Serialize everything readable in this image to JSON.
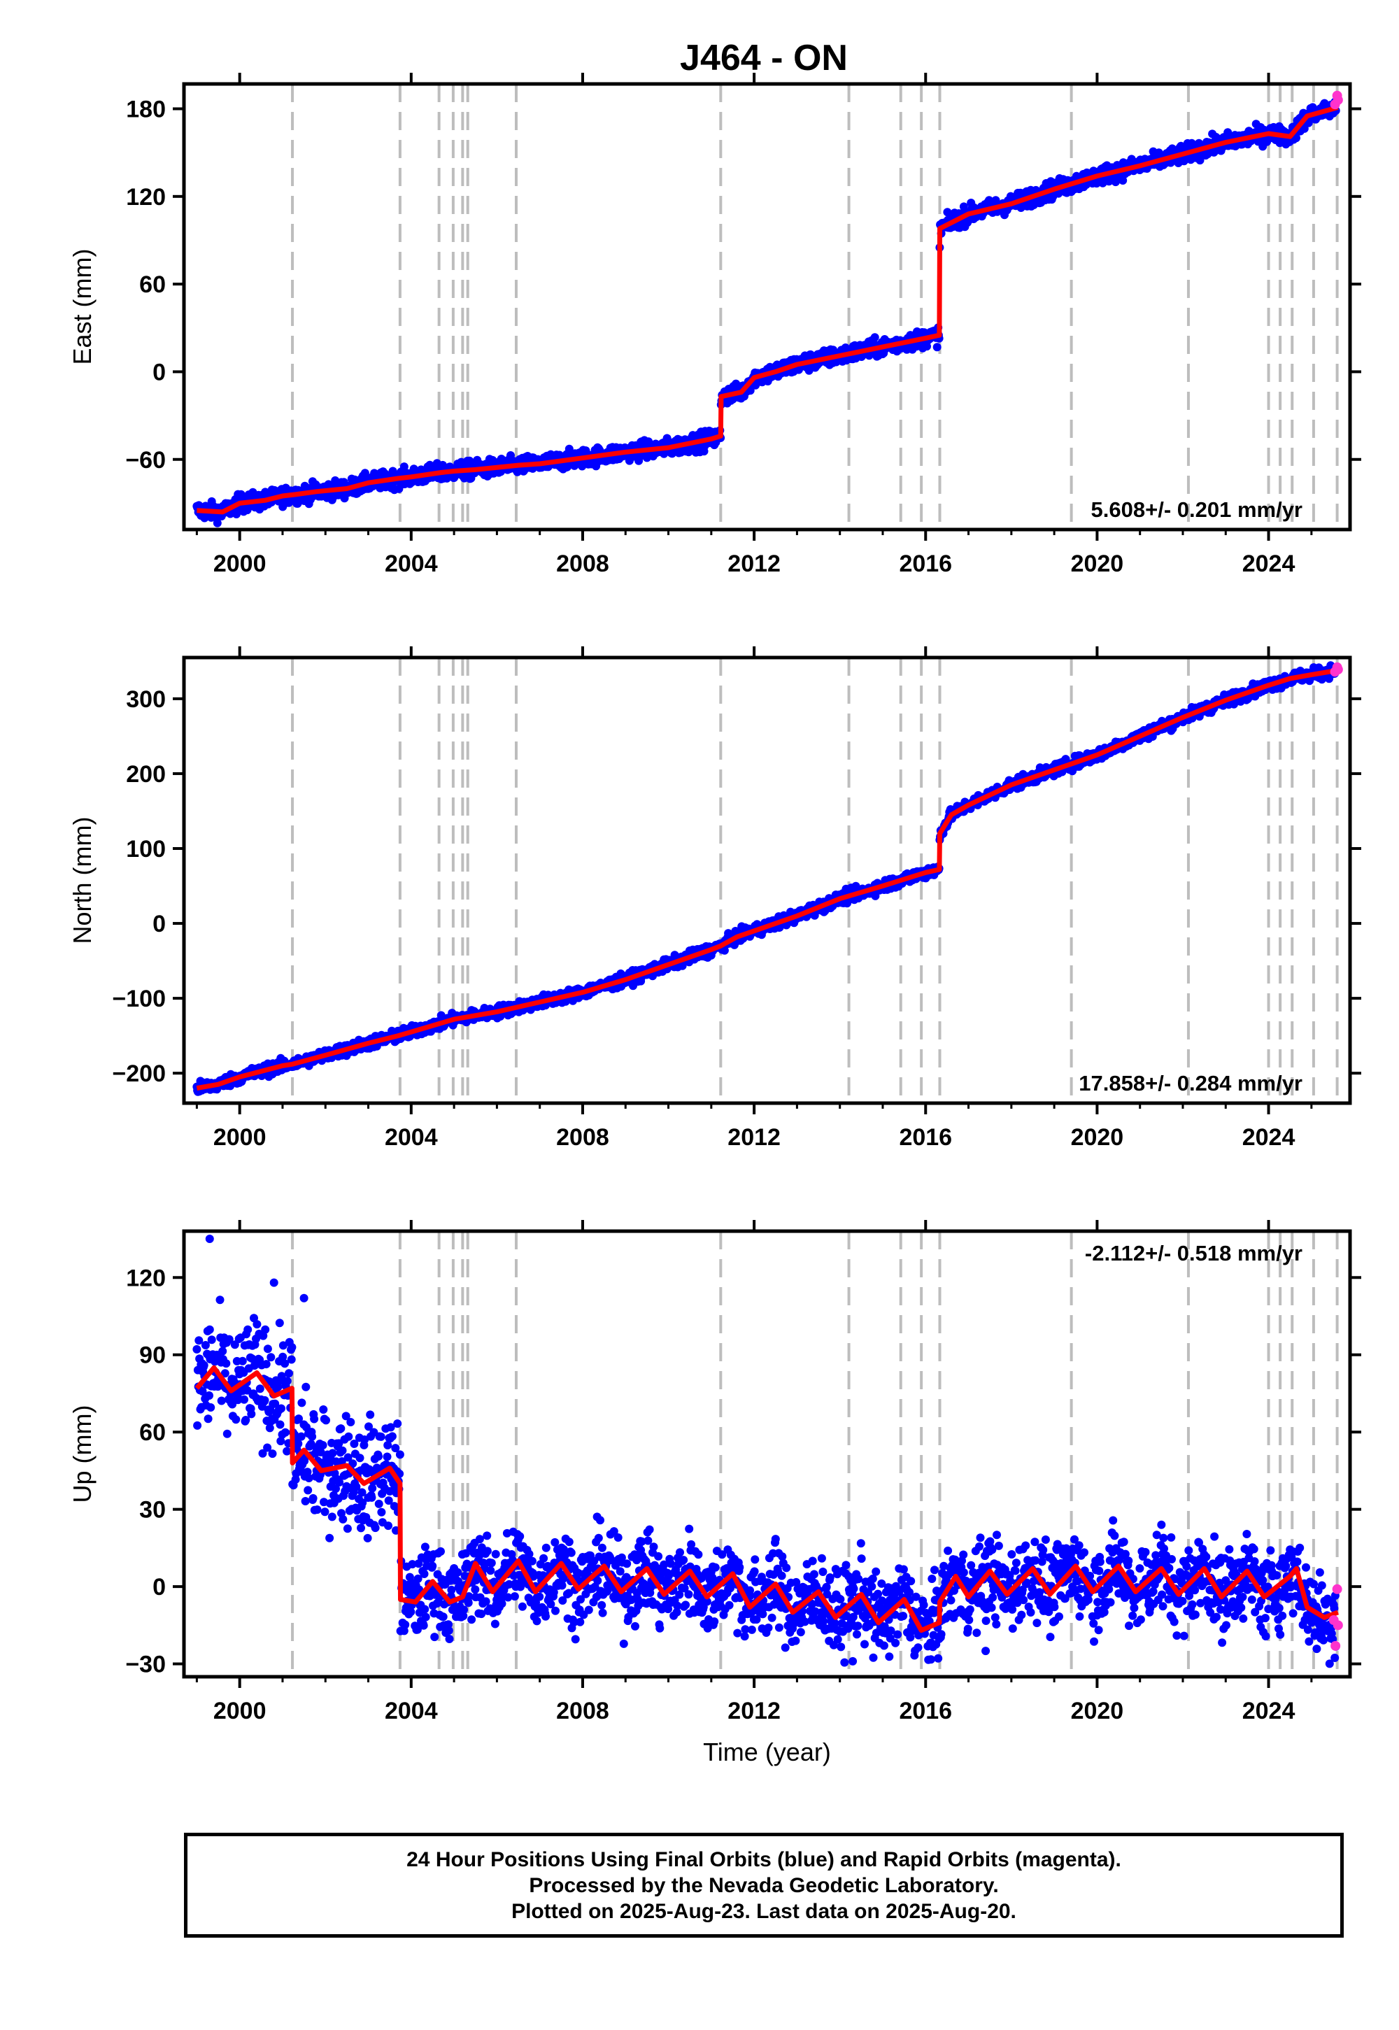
{
  "title": "J464 - ON",
  "colors": {
    "final_orbits": "#0000ff",
    "rapid_orbits": "#ff33cc",
    "model": "#ff0000",
    "steps": "#bdbdbd"
  },
  "chart_data": [
    {
      "type": "scatter",
      "component": "East",
      "ylabel": "East (mm)",
      "xlabel": "",
      "xlim": [
        1998.7,
        2025.9
      ],
      "ylim": [
        -108,
        197
      ],
      "yticks": [
        -60,
        0,
        60,
        120,
        180
      ],
      "xticks": [
        2000,
        2004,
        2008,
        2012,
        2016,
        2020,
        2024
      ],
      "rate_label": "5.608+/- 0.201 mm/yr",
      "rate_position": "bottom-right",
      "model_points": [
        [
          1999.0,
          -95
        ],
        [
          1999.6,
          -96
        ],
        [
          2000.0,
          -90
        ],
        [
          2000.6,
          -88
        ],
        [
          2001.0,
          -85
        ],
        [
          2001.3,
          -84
        ],
        [
          2001.8,
          -82
        ],
        [
          2002.5,
          -80
        ],
        [
          2003.0,
          -76
        ],
        [
          2003.7,
          -73
        ],
        [
          2004.0,
          -72
        ],
        [
          2004.7,
          -69
        ],
        [
          2005.0,
          -68
        ],
        [
          2005.5,
          -67
        ],
        [
          2006.5,
          -64
        ],
        [
          2007.0,
          -63
        ],
        [
          2008.0,
          -59
        ],
        [
          2009.0,
          -55
        ],
        [
          2010.0,
          -52
        ],
        [
          2011.0,
          -46
        ],
        [
          2011.22,
          -44
        ],
        [
          2011.23,
          -17
        ],
        [
          2011.7,
          -14
        ],
        [
          2012.0,
          -4
        ],
        [
          2012.5,
          0
        ],
        [
          2013.0,
          5
        ],
        [
          2014.0,
          11
        ],
        [
          2015.0,
          17
        ],
        [
          2016.0,
          23
        ],
        [
          2016.32,
          25
        ],
        [
          2016.33,
          98
        ],
        [
          2016.8,
          105
        ],
        [
          2017.0,
          108
        ],
        [
          2018.0,
          115
        ],
        [
          2019.0,
          125
        ],
        [
          2020.0,
          134
        ],
        [
          2021.0,
          141
        ],
        [
          2022.0,
          149
        ],
        [
          2023.0,
          157
        ],
        [
          2024.0,
          163
        ],
        [
          2024.5,
          161
        ],
        [
          2024.9,
          175
        ],
        [
          2025.5,
          180
        ],
        [
          2025.62,
          181
        ]
      ],
      "noise": 3,
      "rapid": [
        [
          2025.55,
          183
        ],
        [
          2025.6,
          189
        ],
        [
          2025.62,
          186
        ]
      ]
    },
    {
      "type": "scatter",
      "component": "North",
      "ylabel": "North (mm)",
      "xlabel": "",
      "xlim": [
        1998.7,
        2025.9
      ],
      "ylim": [
        -240,
        355
      ],
      "yticks": [
        -200,
        -100,
        0,
        100,
        200,
        300
      ],
      "xticks": [
        2000,
        2004,
        2008,
        2012,
        2016,
        2020,
        2024
      ],
      "rate_label": "17.858+/- 0.284 mm/yr",
      "rate_position": "bottom-right",
      "model_points": [
        [
          1999.0,
          -220
        ],
        [
          1999.5,
          -215
        ],
        [
          2000.0,
          -205
        ],
        [
          2001.0,
          -190
        ],
        [
          2001.23,
          -188
        ],
        [
          2002.0,
          -176
        ],
        [
          2003.0,
          -160
        ],
        [
          2003.7,
          -150
        ],
        [
          2004.0,
          -145
        ],
        [
          2005.0,
          -128
        ],
        [
          2006.0,
          -118
        ],
        [
          2007.0,
          -105
        ],
        [
          2008.0,
          -92
        ],
        [
          2009.0,
          -75
        ],
        [
          2010.0,
          -55
        ],
        [
          2011.0,
          -35
        ],
        [
          2011.22,
          -30
        ],
        [
          2011.6,
          -18
        ],
        [
          2012.0,
          -10
        ],
        [
          2013.0,
          10
        ],
        [
          2014.0,
          33
        ],
        [
          2015.0,
          50
        ],
        [
          2016.0,
          68
        ],
        [
          2016.32,
          72
        ],
        [
          2016.33,
          120
        ],
        [
          2016.6,
          145
        ],
        [
          2017.0,
          158
        ],
        [
          2018.0,
          185
        ],
        [
          2019.0,
          205
        ],
        [
          2020.0,
          225
        ],
        [
          2021.0,
          250
        ],
        [
          2022.0,
          275
        ],
        [
          2023.0,
          298
        ],
        [
          2024.0,
          318
        ],
        [
          2024.5,
          327
        ],
        [
          2025.0,
          332
        ],
        [
          2025.62,
          338
        ]
      ],
      "noise": 4,
      "rapid": [
        [
          2025.55,
          336
        ],
        [
          2025.6,
          342
        ],
        [
          2025.62,
          339
        ]
      ]
    },
    {
      "type": "scatter",
      "component": "Up",
      "ylabel": "Up (mm)",
      "xlabel": "Time (year)",
      "xlim": [
        1998.7,
        2025.9
      ],
      "ylim": [
        -35,
        138
      ],
      "yticks": [
        -30,
        0,
        30,
        60,
        90,
        120
      ],
      "xticks": [
        2000,
        2004,
        2008,
        2012,
        2016,
        2020,
        2024
      ],
      "rate_label": "-2.112+/- 0.518 mm/yr",
      "rate_position": "top-right",
      "model_points": [
        [
          1999.0,
          77
        ],
        [
          1999.4,
          85
        ],
        [
          1999.8,
          76
        ],
        [
          2000.4,
          83
        ],
        [
          2000.8,
          74
        ],
        [
          2001.22,
          77
        ],
        [
          2001.23,
          48
        ],
        [
          2001.5,
          53
        ],
        [
          2001.9,
          45
        ],
        [
          2002.5,
          47
        ],
        [
          2002.9,
          40
        ],
        [
          2003.5,
          46
        ],
        [
          2003.74,
          40
        ],
        [
          2003.75,
          -5
        ],
        [
          2004.1,
          -6
        ],
        [
          2004.5,
          2
        ],
        [
          2004.9,
          -6
        ],
        [
          2005.2,
          -4
        ],
        [
          2005.5,
          9
        ],
        [
          2005.9,
          -2
        ],
        [
          2006.5,
          10
        ],
        [
          2006.9,
          -2
        ],
        [
          2007.5,
          9
        ],
        [
          2007.9,
          -1
        ],
        [
          2008.5,
          8
        ],
        [
          2008.9,
          -2
        ],
        [
          2009.5,
          7
        ],
        [
          2009.9,
          -3
        ],
        [
          2010.5,
          6
        ],
        [
          2010.9,
          -4
        ],
        [
          2011.5,
          5
        ],
        [
          2011.9,
          -8
        ],
        [
          2012.5,
          1
        ],
        [
          2012.9,
          -10
        ],
        [
          2013.5,
          -2
        ],
        [
          2013.9,
          -12
        ],
        [
          2014.5,
          -3
        ],
        [
          2014.9,
          -14
        ],
        [
          2015.5,
          -5
        ],
        [
          2015.9,
          -17
        ],
        [
          2016.32,
          -14
        ],
        [
          2016.33,
          -6
        ],
        [
          2016.7,
          4
        ],
        [
          2017.0,
          -4
        ],
        [
          2017.5,
          6
        ],
        [
          2017.9,
          -3
        ],
        [
          2018.5,
          7
        ],
        [
          2018.9,
          -3
        ],
        [
          2019.5,
          8
        ],
        [
          2019.9,
          -2
        ],
        [
          2020.5,
          8
        ],
        [
          2020.9,
          -2
        ],
        [
          2021.5,
          7
        ],
        [
          2021.9,
          -3
        ],
        [
          2022.5,
          7
        ],
        [
          2022.9,
          -4
        ],
        [
          2023.5,
          6
        ],
        [
          2023.9,
          -4
        ],
        [
          2024.5,
          4
        ],
        [
          2024.65,
          7
        ],
        [
          2024.9,
          -8
        ],
        [
          2025.3,
          -12
        ],
        [
          2025.62,
          -10
        ]
      ],
      "noise": 8,
      "rapid": [
        [
          2025.52,
          -13
        ],
        [
          2025.56,
          -23
        ],
        [
          2025.6,
          -1
        ],
        [
          2025.62,
          -15
        ]
      ],
      "outliers": [
        [
          1999.3,
          135
        ],
        [
          2000.8,
          118
        ],
        [
          2001.5,
          112
        ],
        [
          2021.5,
          24
        ],
        [
          2014.3,
          -29
        ],
        [
          2017.4,
          -25
        ]
      ]
    }
  ],
  "step_epochs": [
    2001.23,
    2003.74,
    2004.65,
    2004.98,
    2005.2,
    2005.32,
    2006.45,
    2011.22,
    2014.21,
    2015.42,
    2015.9,
    2016.33,
    2019.4,
    2022.13,
    2024.0,
    2024.27,
    2024.55,
    2025.05,
    2025.6
  ],
  "footer": {
    "line1": "24 Hour Positions Using Final Orbits (blue) and Rapid Orbits (magenta).",
    "line2": "Processed by the Nevada Geodetic Laboratory.",
    "line3": "Plotted on 2025-Aug-23. Last data on 2025-Aug-20."
  }
}
